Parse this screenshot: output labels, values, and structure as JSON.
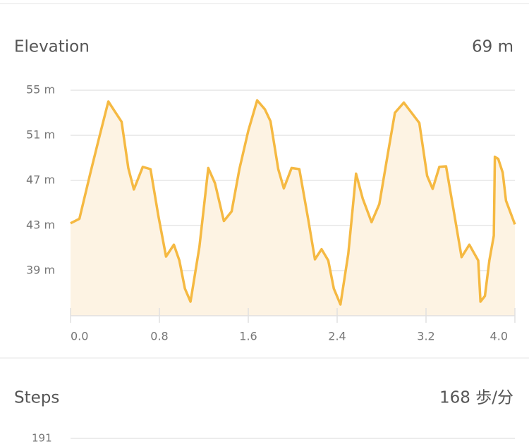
{
  "elevation": {
    "title": "Elevation",
    "value": "69 m"
  },
  "chart_data": {
    "type": "area",
    "x": [
      0,
      0.08,
      0.18,
      0.25,
      0.34,
      0.4,
      0.46,
      0.52,
      0.57,
      0.65,
      0.72,
      0.79,
      0.86,
      0.93,
      0.98,
      1.03,
      1.08,
      1.16,
      1.24,
      1.3,
      1.38,
      1.45,
      1.52,
      1.6,
      1.68,
      1.75,
      1.8,
      1.87,
      1.92,
      1.99,
      2.06,
      2.14,
      2.2,
      2.26,
      2.32,
      2.37,
      2.43,
      2.5,
      2.57,
      2.63,
      2.71,
      2.78,
      2.86,
      2.92,
      3.0,
      3.07,
      3.14,
      3.21,
      3.26,
      3.32,
      3.38,
      3.45,
      3.52,
      3.59,
      3.67,
      3.69,
      3.73,
      3.77,
      3.81,
      3.82,
      3.85,
      3.89,
      3.92,
      4.0
    ],
    "values": [
      43.2,
      43.6,
      47.7,
      50.5,
      54.0,
      53.1,
      52.2,
      48.1,
      46.2,
      48.2,
      48.0,
      43.9,
      40.25,
      41.3,
      39.9,
      37.4,
      36.25,
      41.1,
      48.1,
      46.75,
      43.4,
      44.25,
      48.0,
      51.4,
      54.1,
      53.3,
      52.25,
      48.0,
      46.3,
      48.1,
      48.0,
      43.5,
      40.0,
      40.9,
      39.9,
      37.4,
      36.0,
      40.5,
      47.6,
      45.4,
      43.3,
      44.9,
      49.6,
      53.0,
      53.9,
      53.0,
      52.1,
      47.4,
      46.25,
      48.2,
      48.25,
      44.25,
      40.2,
      41.3,
      39.9,
      36.25,
      36.75,
      39.9,
      42.1,
      49.1,
      48.9,
      47.7,
      45.2,
      43.1
    ],
    "color": "#f5b942",
    "fill": "#fdf3e3",
    "xlim": [
      0,
      4
    ],
    "xticks": [
      {
        "value": 0,
        "label": "0.0"
      },
      0.8,
      1.6,
      2.4,
      3.2,
      {
        "value": 4,
        "label": "4.0"
      }
    ],
    "ylim": [
      35,
      55
    ],
    "yticks": [
      {
        "value": 39,
        "label": "39 m"
      },
      {
        "value": 43,
        "label": "43 m"
      },
      {
        "value": 47,
        "label": "47 m"
      },
      {
        "value": 51,
        "label": "51 m"
      },
      {
        "value": 55,
        "label": "55 m"
      }
    ],
    "grid": true
  },
  "steps": {
    "title": "Steps",
    "value": "168 歩/分",
    "yticks": [
      191
    ]
  }
}
